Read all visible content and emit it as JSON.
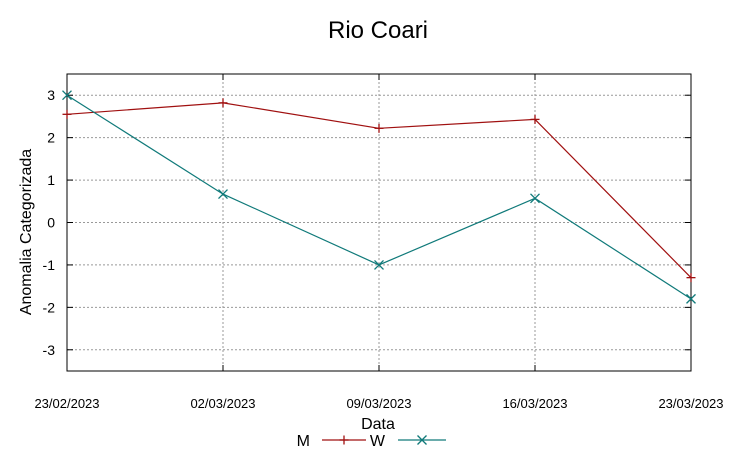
{
  "chart_data": {
    "type": "line",
    "title": "Rio Coari",
    "xlabel": "Data",
    "ylabel": "Anomalia Categorizada",
    "categories": [
      "23/02/2023",
      "02/03/2023",
      "09/03/2023",
      "16/03/2023",
      "23/03/2023"
    ],
    "ylim": [
      -3.5,
      3.5
    ],
    "yticks": [
      "3",
      "2",
      "1",
      "0",
      "-1",
      "-2",
      "-3"
    ],
    "grid": true,
    "legend_position": "bottom",
    "series": [
      {
        "name": "M",
        "values": [
          2.55,
          2.82,
          2.22,
          2.43,
          -1.3
        ],
        "color": "#a01010",
        "marker": "+"
      },
      {
        "name": "W",
        "values": [
          3.0,
          0.67,
          -1.0,
          0.57,
          -1.8
        ],
        "color": "#107a7a",
        "marker": "x"
      }
    ]
  }
}
